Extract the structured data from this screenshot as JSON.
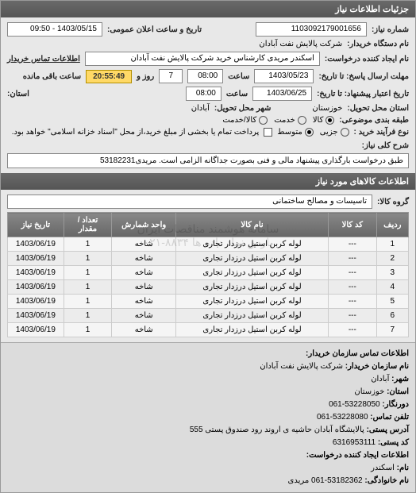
{
  "header": {
    "title": "جزئیات اطلاعات نیاز"
  },
  "info": {
    "need_number_label": "شماره نیاز:",
    "need_number": "1103092179001656",
    "announce_label": "تاریخ و ساعت اعلان عمومی:",
    "announce_value": "1403/05/15 - 09:50",
    "buyer_org_label": "نام دستگاه خریدار:",
    "buyer_org": "شرکت پالایش نفت آبادان",
    "requester_label": "نام ایجاد کننده درخواست:",
    "requester": "اسکندر مریدی کارشناس خرید شرکت پالایش نفت آبادان",
    "contact_label": "اطلاعات تماس خریدار",
    "deadline_send_label": "مهلت ارسال پاسخ: تا تاریخ:",
    "deadline_send_date": "1403/05/23",
    "time_label": "ساعت",
    "deadline_send_time": "08:00",
    "days_label": "روز و",
    "days_value": "7",
    "remain_label": "ساعت باقی مانده",
    "remain_time": "20:55:49",
    "valid_until_label": "تاریخ اعتبار پیشنهاد: تا تاریخ:",
    "valid_until_date": "1403/06/25",
    "valid_until_time": "08:00",
    "province_label": "استان:",
    "delivery_province_label": "استان محل تحویل:",
    "delivery_province": "خوزستان",
    "delivery_city_label": "شهر محل تحویل:",
    "delivery_city": "آبادان",
    "category_label": "طبقه بندی موضوعی:",
    "categories": [
      {
        "label": "کالا",
        "checked": true
      },
      {
        "label": "خدمت",
        "checked": false
      },
      {
        "label": "کالا/خدمت",
        "checked": false
      }
    ],
    "process_label": "نوع فرآیند خرید :",
    "processes": [
      {
        "label": "جزیی",
        "checked": false
      },
      {
        "label": "متوسط",
        "checked": true
      }
    ],
    "payment_note_label": "پرداخت تمام یا بخشی از مبلغ خرید،از محل \"اسناد خزانه اسلامی\" خواهد بود.",
    "desc_label": "شرح کلی نیاز:",
    "desc": "طبق درخواست بارگذاری پیشنهاد مالی و فنی بصورت جداگانه الزامی است. مریدی53182231"
  },
  "goods_header": "اطلاعات کالاهای مورد نیاز",
  "goods_group_label": "گروه کالا:",
  "goods_group": "تاسیسات و مصالح ساختمانی",
  "table": {
    "columns": [
      "ردیف",
      "کد کالا",
      "نام کالا",
      "واحد شمارش",
      "تعداد / مقدار",
      "تاریخ نیاز"
    ],
    "col_widths": [
      "8%",
      "12%",
      "38%",
      "16%",
      "12%",
      "14%"
    ],
    "rows": [
      [
        "1",
        "---",
        "لوله کربن استیل درزدار تجاری",
        "شاخه",
        "1",
        "1403/06/19"
      ],
      [
        "2",
        "---",
        "لوله کربن استیل درزدار تجاری",
        "شاخه",
        "1",
        "1403/06/19"
      ],
      [
        "3",
        "---",
        "لوله کربن استیل درزدار تجاری",
        "شاخه",
        "1",
        "1403/06/19"
      ],
      [
        "4",
        "---",
        "لوله کربن استیل درزدار تجاری",
        "شاخه",
        "1",
        "1403/06/19"
      ],
      [
        "5",
        "---",
        "لوله کربن استیل درزدار تجاری",
        "شاخه",
        "1",
        "1403/06/19"
      ],
      [
        "6",
        "---",
        "لوله کربن استیل درزدار تجاری",
        "شاخه",
        "1",
        "1403/06/19"
      ],
      [
        "7",
        "---",
        "لوله کربن استیل درزدار تجاری",
        "شاخه",
        "1",
        "1403/06/19"
      ]
    ]
  },
  "watermark": {
    "line1": "سامانه هوشمند مناقصات ایران",
    "line2": "پارس نماد داده ها ۸۸۳۴-۰۲۱"
  },
  "contact": {
    "title": "اطلاعات تماس سازمان خریدار:",
    "org_label": "نام سازمان خریدار:",
    "org": "شرکت پالایش نفت آبادان",
    "city_label": "شهر:",
    "city": "آبادان",
    "province_label": "استان:",
    "province": "خوزستان",
    "fax_label": "دورنگار:",
    "fax": "53228050-061",
    "phone_label": "تلفن تماس:",
    "phone": "53228080-061",
    "address_label": "آدرس پستی:",
    "address": "پالایشگاه آبادان حاشیه ی اروند رود صندوق پستی 555",
    "postal_label": "کد پستی:",
    "postal": "6316953111",
    "creator_title": "اطلاعات ایجاد کننده درخواست:",
    "name_label": "نام:",
    "name": "اسکندر",
    "family_label": "نام خانوادگی:",
    "family": "53182362-061 مریدی"
  }
}
